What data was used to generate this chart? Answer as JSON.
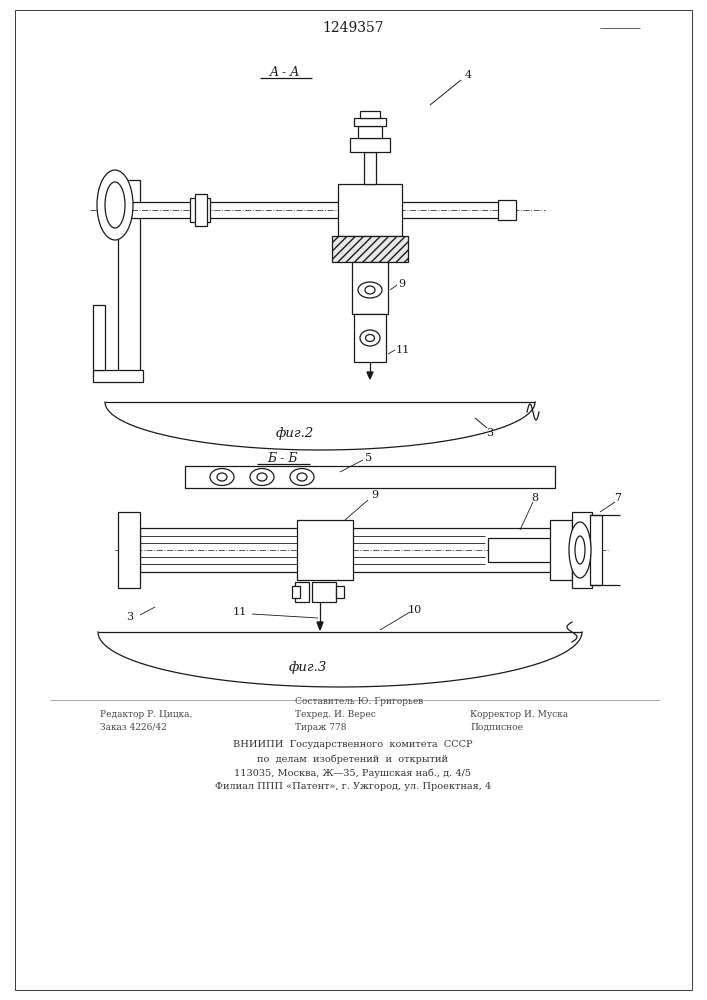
{
  "patent_number": "1249357",
  "bg_color": "#ffffff",
  "line_color": "#1a1a1a",
  "fig2_label": "фиг.2",
  "fig3_label": "фиг.3",
  "section_aa": "A - A",
  "section_bb": "Б - Б",
  "footer_col1_line1": "Редактор Р. Цицка.",
  "footer_col1_line2": "Заказ 4226/42",
  "footer_col2_line0": "Составитель Ю. Григорьев",
  "footer_col2_line1": "Техред. И. Верес",
  "footer_col2_line2": "Тираж 778",
  "footer_col3_line1": "Корректор И. Муска",
  "footer_col3_line2": "Подписное",
  "footer_vniip1": "ВНИИПИ  Государственного  комитета  СССР",
  "footer_vniip2": "по  делам  изобретений  и  открытий",
  "footer_vniip3": "113035, Москва, Ж—35, Раушская наб., д. 4/5",
  "footer_vniip4": "Филиал ППП «Патент», г. Ужгород, ул. Проектная, 4"
}
